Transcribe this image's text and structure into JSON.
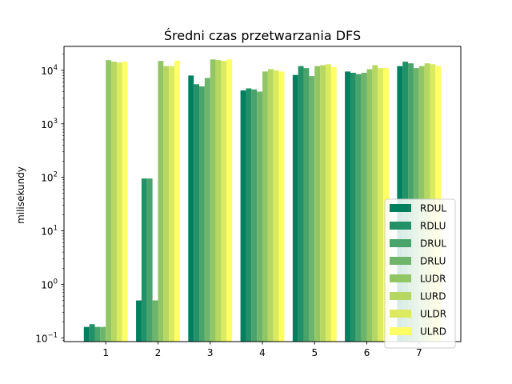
{
  "chart_data": {
    "type": "bar",
    "title": "Średni czas przetwarzania DFS",
    "xlabel": "",
    "ylabel": "milisekundy",
    "yscale": "log",
    "ylim": [
      0.085,
      28000
    ],
    "categories": [
      "1",
      "2",
      "3",
      "4",
      "5",
      "6",
      "7"
    ],
    "y_ticks": [
      {
        "value": 0.1,
        "base": "10",
        "exp": "−1"
      },
      {
        "value": 1,
        "base": "10",
        "exp": "0"
      },
      {
        "value": 10,
        "base": "10",
        "exp": "1"
      },
      {
        "value": 100,
        "base": "10",
        "exp": "2"
      },
      {
        "value": 1000,
        "base": "10",
        "exp": "3"
      },
      {
        "value": 10000,
        "base": "10",
        "exp": "4"
      }
    ],
    "legend_position": "lower right",
    "series": [
      {
        "name": "RDUL",
        "color": "#007f5f",
        "values": [
          0.16,
          0.5,
          8000,
          4200,
          8200,
          9500,
          12000
        ]
      },
      {
        "name": "RDLU",
        "color": "#239167",
        "values": [
          0.18,
          95,
          5500,
          4600,
          12000,
          9000,
          14500
        ]
      },
      {
        "name": "DRUL",
        "color": "#48a46a",
        "values": [
          0.16,
          95,
          5000,
          4400,
          11000,
          8500,
          13500
        ]
      },
      {
        "name": "DRLU",
        "color": "#6eb46b",
        "values": [
          0.16,
          0.5,
          7200,
          4000,
          7800,
          9000,
          11000
        ]
      },
      {
        "name": "LUDR",
        "color": "#92c665",
        "values": [
          15500,
          15000,
          16000,
          9500,
          12000,
          10500,
          12000
        ]
      },
      {
        "name": "LURD",
        "color": "#b6d862",
        "values": [
          14500,
          12000,
          15500,
          10500,
          12500,
          12500,
          13500
        ]
      },
      {
        "name": "ULDR",
        "color": "#dbea5f",
        "values": [
          14000,
          12000,
          15000,
          10000,
          13000,
          11000,
          13000
        ]
      },
      {
        "name": "ULRD",
        "color": "#ffff66",
        "values": [
          14500,
          15000,
          16000,
          9500,
          11500,
          11000,
          12000
        ]
      }
    ]
  }
}
